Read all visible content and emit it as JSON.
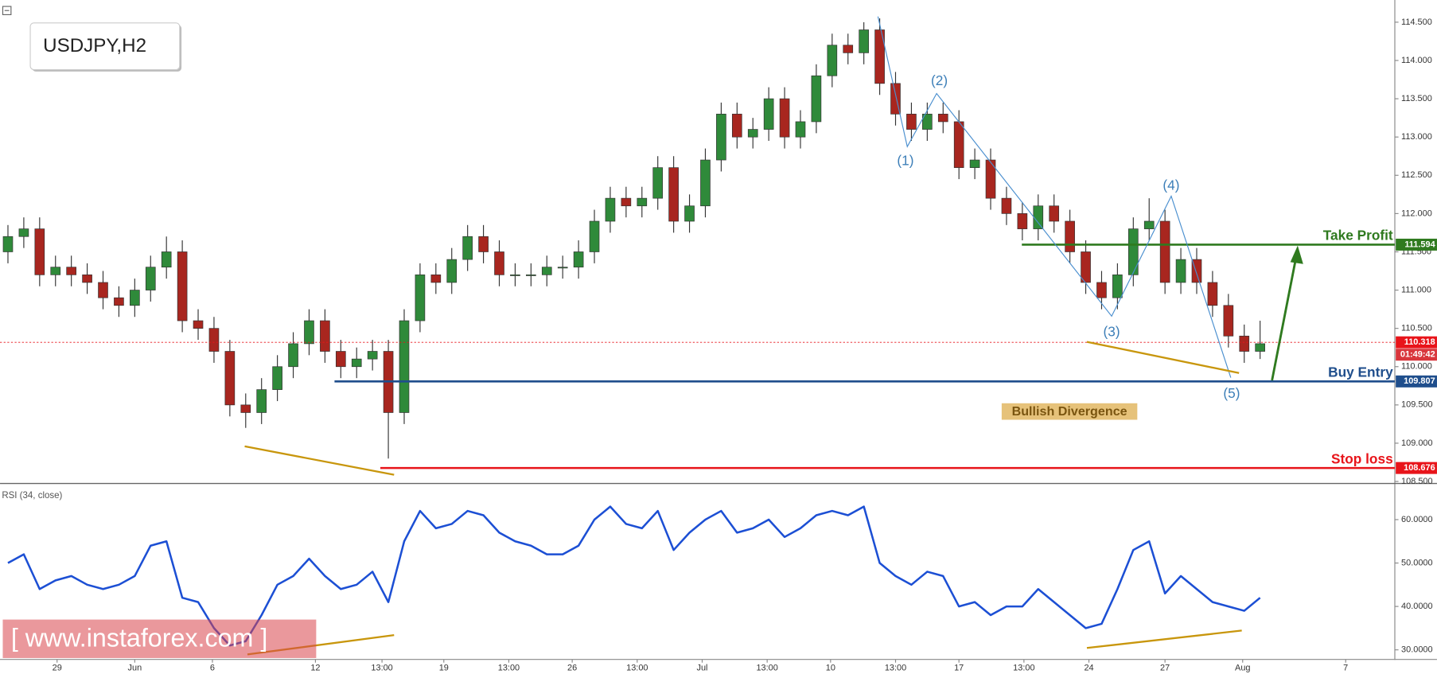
{
  "chart_data": [
    {
      "type": "candlestick",
      "title": "USDJPY,H2",
      "up_color": "#2f8a3a",
      "down_color": "#a8261f",
      "open": [
        111.5,
        111.7,
        111.8,
        111.2,
        111.3,
        111.2,
        111.1,
        110.9,
        110.8,
        111.0,
        111.3,
        111.5,
        110.6,
        110.5,
        110.2,
        109.5,
        109.4,
        109.7,
        110.0,
        110.3,
        110.6,
        110.2,
        110.0,
        110.1,
        110.2,
        109.4,
        110.6,
        111.2,
        111.1,
        111.4,
        111.7,
        111.5,
        111.2,
        111.2,
        111.2,
        111.3,
        111.3,
        111.5,
        111.9,
        112.2,
        112.1,
        112.2,
        112.6,
        111.9,
        112.1,
        112.7,
        113.3,
        113.0,
        113.1,
        113.5,
        113.0,
        113.2,
        113.8,
        114.2,
        114.1,
        114.4,
        113.7,
        113.3,
        113.1,
        113.3,
        113.2,
        112.6,
        112.7,
        112.2,
        112.0,
        111.8,
        112.1,
        111.9,
        111.5,
        111.1,
        110.9,
        111.2,
        111.8,
        111.9,
        111.1,
        111.4,
        111.1,
        110.8,
        110.4,
        110.2
      ],
      "high": [
        111.85,
        111.95,
        111.95,
        111.45,
        111.45,
        111.35,
        111.25,
        111.05,
        111.15,
        111.45,
        111.7,
        111.65,
        110.75,
        110.65,
        110.35,
        109.65,
        109.85,
        110.15,
        110.45,
        110.75,
        110.75,
        110.35,
        110.25,
        110.35,
        110.35,
        110.75,
        111.35,
        111.35,
        111.55,
        111.85,
        111.85,
        111.65,
        111.35,
        111.35,
        111.45,
        111.45,
        111.65,
        112.05,
        112.35,
        112.35,
        112.35,
        112.75,
        112.75,
        112.25,
        112.85,
        113.45,
        113.45,
        113.25,
        113.65,
        113.65,
        113.35,
        113.95,
        114.35,
        114.35,
        114.5,
        114.55,
        113.85,
        113.45,
        113.45,
        113.45,
        113.35,
        112.85,
        112.85,
        112.35,
        112.15,
        112.25,
        112.25,
        112.05,
        111.65,
        111.25,
        111.35,
        111.95,
        112.2,
        112.05,
        111.55,
        111.55,
        111.25,
        110.95,
        110.55,
        110.6
      ],
      "low": [
        111.35,
        111.55,
        111.05,
        111.05,
        111.05,
        110.95,
        110.75,
        110.65,
        110.65,
        110.85,
        111.15,
        110.45,
        110.35,
        110.05,
        109.35,
        109.2,
        109.25,
        109.55,
        109.85,
        110.15,
        110.05,
        109.85,
        109.85,
        109.95,
        108.8,
        109.25,
        110.45,
        110.95,
        110.95,
        111.25,
        111.35,
        111.05,
        111.05,
        111.05,
        111.05,
        111.15,
        111.15,
        111.35,
        111.75,
        111.95,
        111.95,
        112.05,
        111.75,
        111.75,
        111.95,
        112.55,
        112.85,
        112.85,
        112.95,
        112.85,
        112.85,
        113.05,
        113.65,
        113.95,
        113.95,
        113.55,
        113.15,
        112.95,
        112.95,
        113.05,
        112.45,
        112.45,
        112.05,
        111.85,
        111.65,
        111.65,
        111.75,
        111.35,
        110.95,
        110.75,
        110.75,
        111.05,
        111.65,
        110.95,
        110.95,
        110.95,
        110.65,
        110.25,
        110.05,
        110.1
      ],
      "close": [
        111.7,
        111.8,
        111.2,
        111.3,
        111.2,
        111.1,
        110.9,
        110.8,
        111.0,
        111.3,
        111.5,
        110.6,
        110.5,
        110.2,
        109.5,
        109.4,
        109.7,
        110.0,
        110.3,
        110.6,
        110.2,
        110.0,
        110.1,
        110.2,
        109.4,
        110.6,
        111.2,
        111.1,
        111.4,
        111.7,
        111.5,
        111.2,
        111.2,
        111.2,
        111.3,
        111.3,
        111.5,
        111.9,
        112.2,
        112.1,
        112.2,
        112.6,
        111.9,
        112.1,
        112.7,
        113.3,
        113.0,
        113.1,
        113.5,
        113.0,
        113.2,
        113.8,
        114.2,
        114.1,
        114.4,
        113.7,
        113.3,
        113.1,
        113.3,
        113.2,
        112.6,
        112.7,
        112.2,
        112.0,
        111.8,
        112.1,
        111.9,
        111.5,
        111.1,
        110.9,
        111.2,
        111.8,
        111.9,
        111.1,
        111.4,
        111.1,
        110.8,
        110.4,
        110.2,
        110.3
      ],
      "xlim": [
        0,
        88
      ],
      "ylim": [
        108.48,
        114.79
      ],
      "yticks": [
        {
          "value": 108.5,
          "label": "108.500"
        },
        {
          "value": 109,
          "label": "109.000"
        },
        {
          "value": 109.5,
          "label": "109.500"
        },
        {
          "value": 110,
          "label": "110.000"
        },
        {
          "value": 110.5,
          "label": "110.500"
        },
        {
          "value": 111,
          "label": "111.000"
        },
        {
          "value": 111.5,
          "label": "111.500"
        },
        {
          "value": 112,
          "label": "112.000"
        },
        {
          "value": 112.5,
          "label": "112.500"
        },
        {
          "value": 113,
          "label": "113.000"
        },
        {
          "value": 113.5,
          "label": "113.500"
        },
        {
          "value": 114,
          "label": "114.000"
        },
        {
          "value": 114.5,
          "label": "114.500"
        }
      ],
      "levels": [
        {
          "label": "Take Profit",
          "value": 111.594,
          "color": "#2f7a1f"
        },
        {
          "label": "Buy Entry",
          "value": 109.807,
          "color": "#1f4e8c"
        },
        {
          "label": "Stop loss",
          "value": 108.676,
          "color": "#e8141a"
        }
      ],
      "last_price": 110.318,
      "last_price_color": "#e8141a",
      "countdown": "01:49:42",
      "waves": [
        "(1)",
        "(2)",
        "(3)",
        "(4)",
        "(5)"
      ],
      "divergence_label": "Bullish Divergence"
    },
    {
      "type": "line",
      "title": "RSI (34, close)",
      "color": "#1c4fd4",
      "values": [
        50,
        52,
        44,
        46,
        47,
        45,
        44,
        45,
        47,
        54,
        55,
        42,
        41,
        35,
        31,
        32,
        38,
        45,
        47,
        51,
        47,
        44,
        45,
        48,
        41,
        55,
        62,
        58,
        59,
        62,
        61,
        57,
        55,
        54,
        52,
        52,
        54,
        60,
        63,
        59,
        58,
        62,
        53,
        57,
        60,
        62,
        57,
        58,
        60,
        56,
        58,
        61,
        62,
        61,
        63,
        50,
        47,
        45,
        48,
        47,
        40,
        41,
        38,
        40,
        40,
        44,
        41,
        38,
        35,
        36,
        44,
        53,
        55,
        43,
        47,
        44,
        41,
        40,
        39,
        42
      ],
      "xlim": [
        0,
        88
      ],
      "ylim": [
        27.9,
        67.8
      ],
      "yticks": [
        {
          "value": 30,
          "label": "30.0000"
        },
        {
          "value": 40,
          "label": "40.0000"
        },
        {
          "value": 50,
          "label": "50.0000"
        },
        {
          "value": 60,
          "label": "60.0000"
        }
      ],
      "xticks": [
        {
          "value": 3.6,
          "label": "29"
        },
        {
          "value": 8.5,
          "label": "Jun"
        },
        {
          "value": 13.4,
          "label": "6"
        },
        {
          "value": 19.9,
          "label": "12"
        },
        {
          "value": 24.1,
          "label": "13:00"
        },
        {
          "value": 28.0,
          "label": "19"
        },
        {
          "value": 32.1,
          "label": "13:00"
        },
        {
          "value": 36.1,
          "label": "26"
        },
        {
          "value": 40.2,
          "label": "13:00"
        },
        {
          "value": 44.3,
          "label": "Jul"
        },
        {
          "value": 48.4,
          "label": "13:00"
        },
        {
          "value": 52.4,
          "label": "10"
        },
        {
          "value": 56.5,
          "label": "13:00"
        },
        {
          "value": 60.5,
          "label": "17"
        },
        {
          "value": 64.6,
          "label": "13:00"
        },
        {
          "value": 68.7,
          "label": "24"
        },
        {
          "value": 73.5,
          "label": "27"
        },
        {
          "value": 78.4,
          "label": "Aug"
        },
        {
          "value": 84.9,
          "label": "7"
        }
      ]
    }
  ],
  "watermark": "[ www.instaforex.com ]"
}
